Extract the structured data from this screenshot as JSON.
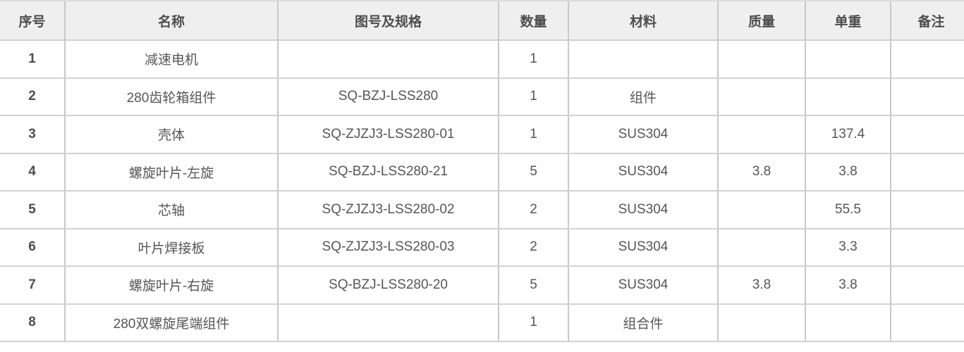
{
  "chart_data": {
    "type": "table",
    "title": "",
    "columns": [
      "序号",
      "名称",
      "图号及规格",
      "数量",
      "材料",
      "质量",
      "单重",
      "备注"
    ],
    "rows": [
      [
        "1",
        "减速电机",
        "",
        "1",
        "",
        "",
        "",
        ""
      ],
      [
        "2",
        "280齿轮箱组件",
        "SQ-BZJ-LSS280",
        "1",
        "组件",
        "",
        "",
        ""
      ],
      [
        "3",
        "壳体",
        "SQ-ZJZJ3-LSS280-01",
        "1",
        "SUS304",
        "",
        "137.4",
        ""
      ],
      [
        "4",
        "螺旋叶片-左旋",
        "SQ-BZJ-LSS280-21",
        "5",
        "SUS304",
        "3.8",
        "3.8",
        ""
      ],
      [
        "5",
        "芯轴",
        "SQ-ZJZJ3-LSS280-02",
        "2",
        "SUS304",
        "",
        "55.5",
        ""
      ],
      [
        "6",
        "叶片焊接板",
        "SQ-ZJZJ3-LSS280-03",
        "2",
        "SUS304",
        "",
        "3.3",
        ""
      ],
      [
        "7",
        "螺旋叶片-右旋",
        "SQ-BZJ-LSS280-20",
        "5",
        "SUS304",
        "3.8",
        "3.8",
        ""
      ],
      [
        "8",
        "280双螺旋尾端组件",
        "",
        "1",
        "组合件",
        "",
        "",
        ""
      ]
    ],
    "layout": {
      "grid": true,
      "header_row": true,
      "clipped_right_edge": true
    }
  },
  "colors": {
    "header_bg": "#efefef",
    "border_vertical": "#c8c8c8",
    "border_horizontal": "#d2d2d2",
    "header_text": "#4d4d4d",
    "body_text": "#565656"
  }
}
